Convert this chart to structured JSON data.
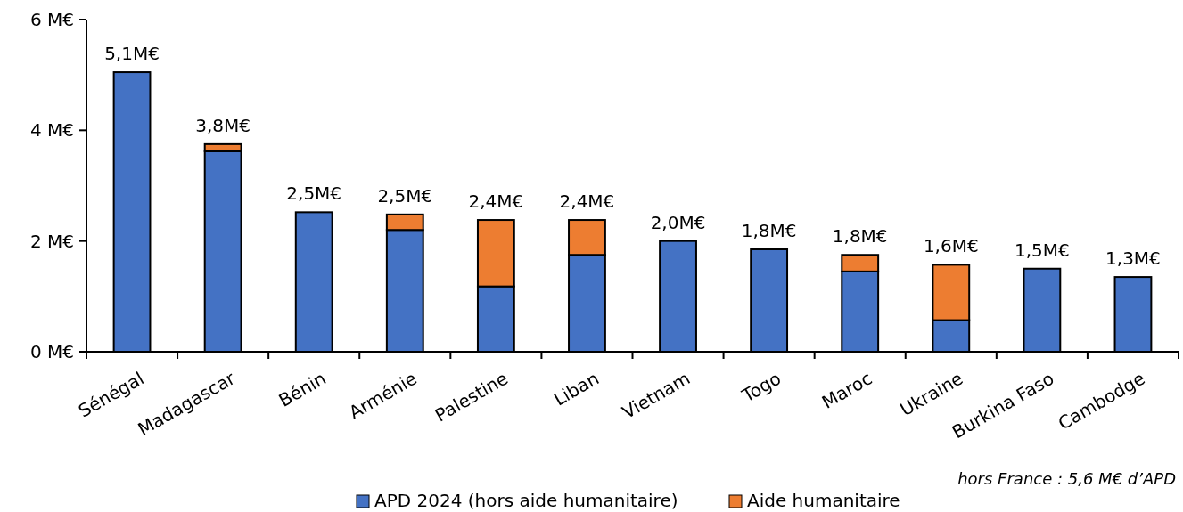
{
  "chart_data": {
    "type": "bar",
    "stacked": true,
    "categories": [
      "Sénégal",
      "Madagascar",
      "Bénin",
      "Arménie",
      "Palestine",
      "Liban",
      "Vietnam",
      "Togo",
      "Maroc",
      "Ukraine",
      "Burkina Faso",
      "Cambodge"
    ],
    "series": [
      {
        "name": "APD 2024 (hors aide humanitaire)",
        "color": "#4472c4",
        "values": [
          5.05,
          3.62,
          2.52,
          2.2,
          1.18,
          1.75,
          2.0,
          1.85,
          1.45,
          0.57,
          1.5,
          1.35
        ]
      },
      {
        "name": "Aide humanitaire",
        "color": "#ed7d31",
        "values": [
          0,
          0.13,
          0,
          0.28,
          1.2,
          0.63,
          0,
          0,
          0.3,
          1.0,
          0,
          0
        ]
      }
    ],
    "totals": [
      "5,1M€",
      "3,8M€",
      "2,5M€",
      "2,5M€",
      "2,4M€",
      "2,4M€",
      "2,0M€",
      "1,8M€",
      "1,8M€",
      "1,6M€",
      "1,5M€",
      "1,3M€"
    ],
    "ylim": [
      0,
      6
    ],
    "yticks": [
      {
        "value": 0,
        "label": "0 M€"
      },
      {
        "value": 2,
        "label": "2 M€"
      },
      {
        "value": 4,
        "label": "4 M€"
      },
      {
        "value": 6,
        "label": "6 M€"
      }
    ],
    "legend": "bottom",
    "annotations": [
      "hors France : 5,6 M€ d’APD"
    ]
  }
}
